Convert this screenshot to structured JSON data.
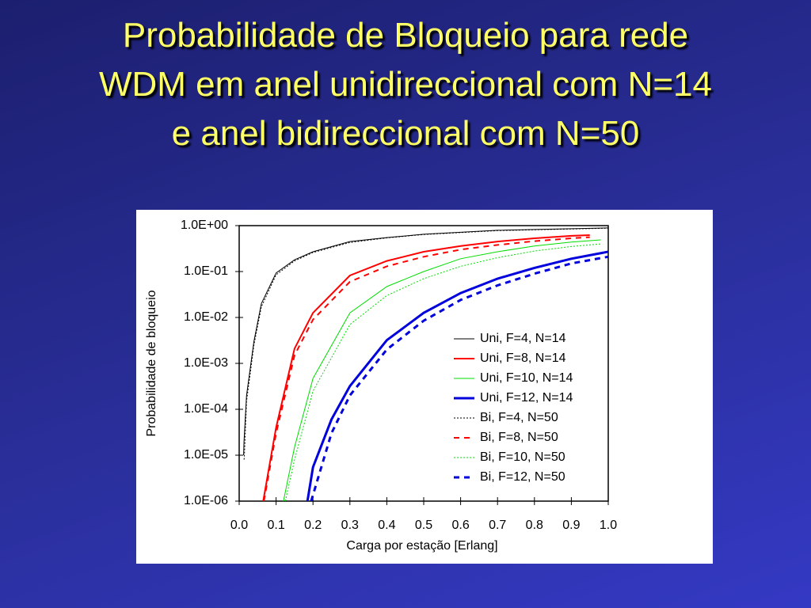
{
  "chart_data": {
    "type": "line",
    "title_lines": [
      "Probabilidade de Bloqueio para rede",
      "WDM em anel unidireccional com N=14",
      "e anel bidireccional com N=50"
    ],
    "xlabel": "Carga por estação [Erlang]",
    "ylabel": "Probabilidade de bloqueio",
    "log_y": true,
    "xlim": [
      0,
      1
    ],
    "ylim": [
      1e-06,
      1
    ],
    "xticks": [
      {
        "value": 0,
        "label": "0.0"
      },
      0.1,
      0.2,
      0.3,
      0.4,
      0.5,
      0.6,
      0.7,
      0.8,
      0.9,
      {
        "value": 1,
        "label": "1.0"
      }
    ],
    "yticks": [
      {
        "value": 1,
        "label": "1.0E+00"
      },
      {
        "value": 0.1,
        "label": "1.0E-01"
      },
      {
        "value": 0.01,
        "label": "1.0E-02"
      },
      {
        "value": 0.001,
        "label": "1.0E-03"
      },
      {
        "value": 0.0001,
        "label": "1.0E-04"
      },
      {
        "value": 1e-05,
        "label": "1.0E-05"
      },
      {
        "value": 1e-06,
        "label": "1.0E-06"
      }
    ],
    "series": [
      {
        "name": "Uni, F=4, N=14",
        "color": "#000000",
        "dash": "solid",
        "width": 1,
        "x": [
          0.012,
          0.013,
          0.02,
          0.04,
          0.06,
          0.1,
          0.15,
          0.2,
          0.3,
          0.4,
          0.5,
          0.7,
          1.0
        ],
        "values": [
          1e-05,
          2e-05,
          0.0002,
          0.003,
          0.02,
          0.093,
          0.18,
          0.27,
          0.45,
          0.55,
          0.65,
          0.79,
          0.89
        ]
      },
      {
        "name": "Uni, F=8, N=14",
        "color": "#ff0000",
        "dash": "solid",
        "width": 2,
        "x": [
          0.065,
          0.1,
          0.15,
          0.2,
          0.3,
          0.4,
          0.5,
          0.6,
          0.7,
          0.8,
          0.9,
          0.95
        ],
        "values": [
          1e-06,
          4e-05,
          0.0021,
          0.0126,
          0.082,
          0.17,
          0.27,
          0.36,
          0.45,
          0.53,
          0.6,
          0.62
        ]
      },
      {
        "name": "Uni, F=10, N=14",
        "color": "#00dd00",
        "dash": "solid",
        "width": 1,
        "x": [
          0.12,
          0.15,
          0.2,
          0.3,
          0.4,
          0.5,
          0.6,
          0.7,
          0.8,
          0.9,
          0.98
        ],
        "values": [
          1e-06,
          1.5e-05,
          0.00047,
          0.0126,
          0.047,
          0.1,
          0.19,
          0.27,
          0.36,
          0.44,
          0.49
        ]
      },
      {
        "name": "Uni, F=12, N=14",
        "color": "#0000dd",
        "dash": "solid",
        "width": 3,
        "x": [
          0.185,
          0.2,
          0.25,
          0.3,
          0.4,
          0.5,
          0.6,
          0.7,
          0.8,
          0.9,
          1.0
        ],
        "values": [
          1e-06,
          5.5e-06,
          6e-05,
          0.00032,
          0.0032,
          0.0126,
          0.034,
          0.07,
          0.12,
          0.19,
          0.27
        ]
      },
      {
        "name": "Bi, F=4, N=50",
        "color": "#000000",
        "dash": "dotted",
        "width": 1,
        "x": [
          0.013,
          0.014,
          0.02,
          0.04,
          0.06,
          0.1,
          0.15,
          0.2,
          0.3,
          0.4,
          0.5,
          0.7,
          1.0
        ],
        "values": [
          8e-06,
          9e-06,
          0.00015,
          0.0025,
          0.017,
          0.085,
          0.17,
          0.26,
          0.43,
          0.54,
          0.64,
          0.78,
          0.88
        ]
      },
      {
        "name": "Bi, F=8, N=50",
        "color": "#ff0000",
        "dash": "dashed",
        "width": 2,
        "x": [
          0.067,
          0.1,
          0.15,
          0.2,
          0.3,
          0.4,
          0.5,
          0.6,
          0.7,
          0.8,
          0.9,
          0.95
        ],
        "values": [
          1e-06,
          3e-05,
          0.0015,
          0.009,
          0.06,
          0.13,
          0.21,
          0.3,
          0.38,
          0.46,
          0.53,
          0.56
        ]
      },
      {
        "name": "Bi, F=10, N=50",
        "color": "#00dd00",
        "dash": "dotted",
        "width": 1,
        "x": [
          0.125,
          0.15,
          0.2,
          0.3,
          0.4,
          0.5,
          0.6,
          0.7,
          0.8,
          0.9,
          0.98
        ],
        "values": [
          1e-06,
          8e-06,
          0.00025,
          0.007,
          0.03,
          0.07,
          0.13,
          0.2,
          0.28,
          0.35,
          0.4
        ]
      },
      {
        "name": "Bi, F=12, N=50",
        "color": "#0000dd",
        "dash": "dashed",
        "width": 3,
        "x": [
          0.195,
          0.25,
          0.3,
          0.4,
          0.5,
          0.6,
          0.7,
          0.8,
          0.9,
          1.0
        ],
        "values": [
          1e-06,
          3e-05,
          0.0002,
          0.002,
          0.0085,
          0.024,
          0.05,
          0.09,
          0.15,
          0.21
        ]
      }
    ]
  }
}
